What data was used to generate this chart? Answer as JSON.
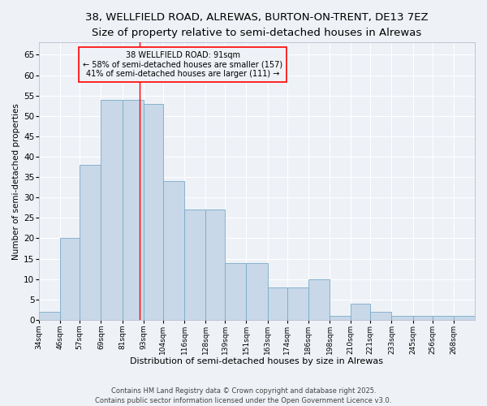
{
  "title1": "38, WELLFIELD ROAD, ALREWAS, BURTON-ON-TRENT, DE13 7EZ",
  "title2": "Size of property relative to semi-detached houses in Alrewas",
  "xlabel": "Distribution of semi-detached houses by size in Alrewas",
  "ylabel": "Number of semi-detached properties",
  "bins": [
    "34sqm",
    "46sqm",
    "57sqm",
    "69sqm",
    "81sqm",
    "93sqm",
    "104sqm",
    "116sqm",
    "128sqm",
    "139sqm",
    "151sqm",
    "163sqm",
    "174sqm",
    "186sqm",
    "198sqm",
    "210sqm",
    "221sqm",
    "233sqm",
    "245sqm",
    "256sqm",
    "268sqm"
  ],
  "values": [
    2,
    20,
    38,
    54,
    54,
    53,
    34,
    27,
    27,
    14,
    14,
    8,
    8,
    10,
    1,
    4,
    2,
    1,
    1,
    1,
    1
  ],
  "bin_centers": [
    34,
    46,
    57,
    69,
    81,
    93,
    104,
    116,
    128,
    139,
    151,
    163,
    174,
    186,
    198,
    210,
    221,
    233,
    245,
    256,
    268
  ],
  "bar_color": "#c8d8e8",
  "bar_edge_color": "#7aaac8",
  "property_line_x": 91,
  "ylim": [
    0,
    68
  ],
  "yticks": [
    0,
    5,
    10,
    15,
    20,
    25,
    30,
    35,
    40,
    45,
    50,
    55,
    60,
    65
  ],
  "annotation_title": "38 WELLFIELD ROAD: 91sqm",
  "annotation_line1": "← 58% of semi-detached houses are smaller (157)",
  "annotation_line2": "41% of semi-detached houses are larger (111) →",
  "footer1": "Contains HM Land Registry data © Crown copyright and database right 2025.",
  "footer2": "Contains public sector information licensed under the Open Government Licence v3.0.",
  "bg_color": "#eef2f7",
  "grid_color": "#ffffff",
  "title1_fontsize": 9.5,
  "title2_fontsize": 8.0
}
